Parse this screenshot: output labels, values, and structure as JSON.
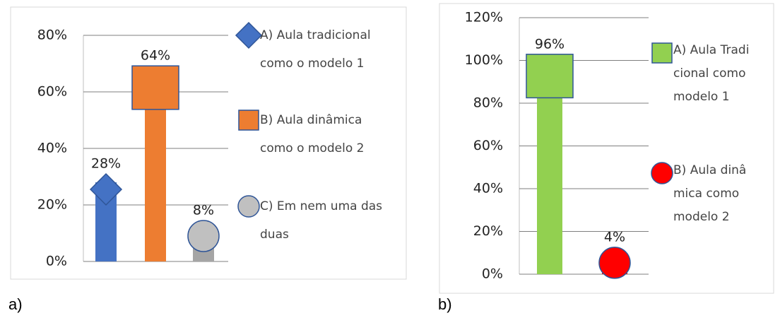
{
  "chart_data": [
    {
      "type": "bar",
      "label": "a)",
      "ylim": [
        0,
        80
      ],
      "yticks": [
        {
          "value": 0,
          "label": "0%"
        },
        {
          "value": 20,
          "label": "20%"
        },
        {
          "value": 40,
          "label": "40%"
        },
        {
          "value": 60,
          "label": "60%"
        },
        {
          "value": 80,
          "label": "80%"
        }
      ],
      "grid": true,
      "series": [
        {
          "name": "A) Aula tradicional como o modelo 1",
          "color": "#4472c4",
          "marker": "diamond",
          "values": [
            28
          ],
          "value_labels": [
            "28%"
          ]
        },
        {
          "name": "B) Aula dinâmica como o modelo 2",
          "color": "#ed7d31",
          "marker": "square",
          "values": [
            64
          ],
          "value_labels": [
            "64%"
          ]
        },
        {
          "name": "C) Em nem uma das duas",
          "color": "#a5a5a5",
          "marker_color": "#c0c0c0",
          "marker": "circle",
          "values": [
            8
          ],
          "value_labels": [
            "8%"
          ]
        }
      ]
    },
    {
      "type": "bar",
      "label": "b)",
      "ylim": [
        0,
        120
      ],
      "yticks": [
        {
          "value": 0,
          "label": "0%"
        },
        {
          "value": 20,
          "label": "20%"
        },
        {
          "value": 40,
          "label": "40%"
        },
        {
          "value": 60,
          "label": "60%"
        },
        {
          "value": 80,
          "label": "80%"
        },
        {
          "value": 100,
          "label": "100%"
        },
        {
          "value": 120,
          "label": "120%"
        }
      ],
      "grid": true,
      "series": [
        {
          "name": "A) Aula Tradicional como modelo 1",
          "color": "#92d050",
          "marker": "square",
          "values": [
            96
          ],
          "value_labels": [
            "96%"
          ]
        },
        {
          "name": "B) Aula dinâmica como modelo 2",
          "color": "#ff0000",
          "marker": "circle",
          "values": [
            4
          ],
          "value_labels": [
            "4%"
          ]
        }
      ]
    }
  ]
}
